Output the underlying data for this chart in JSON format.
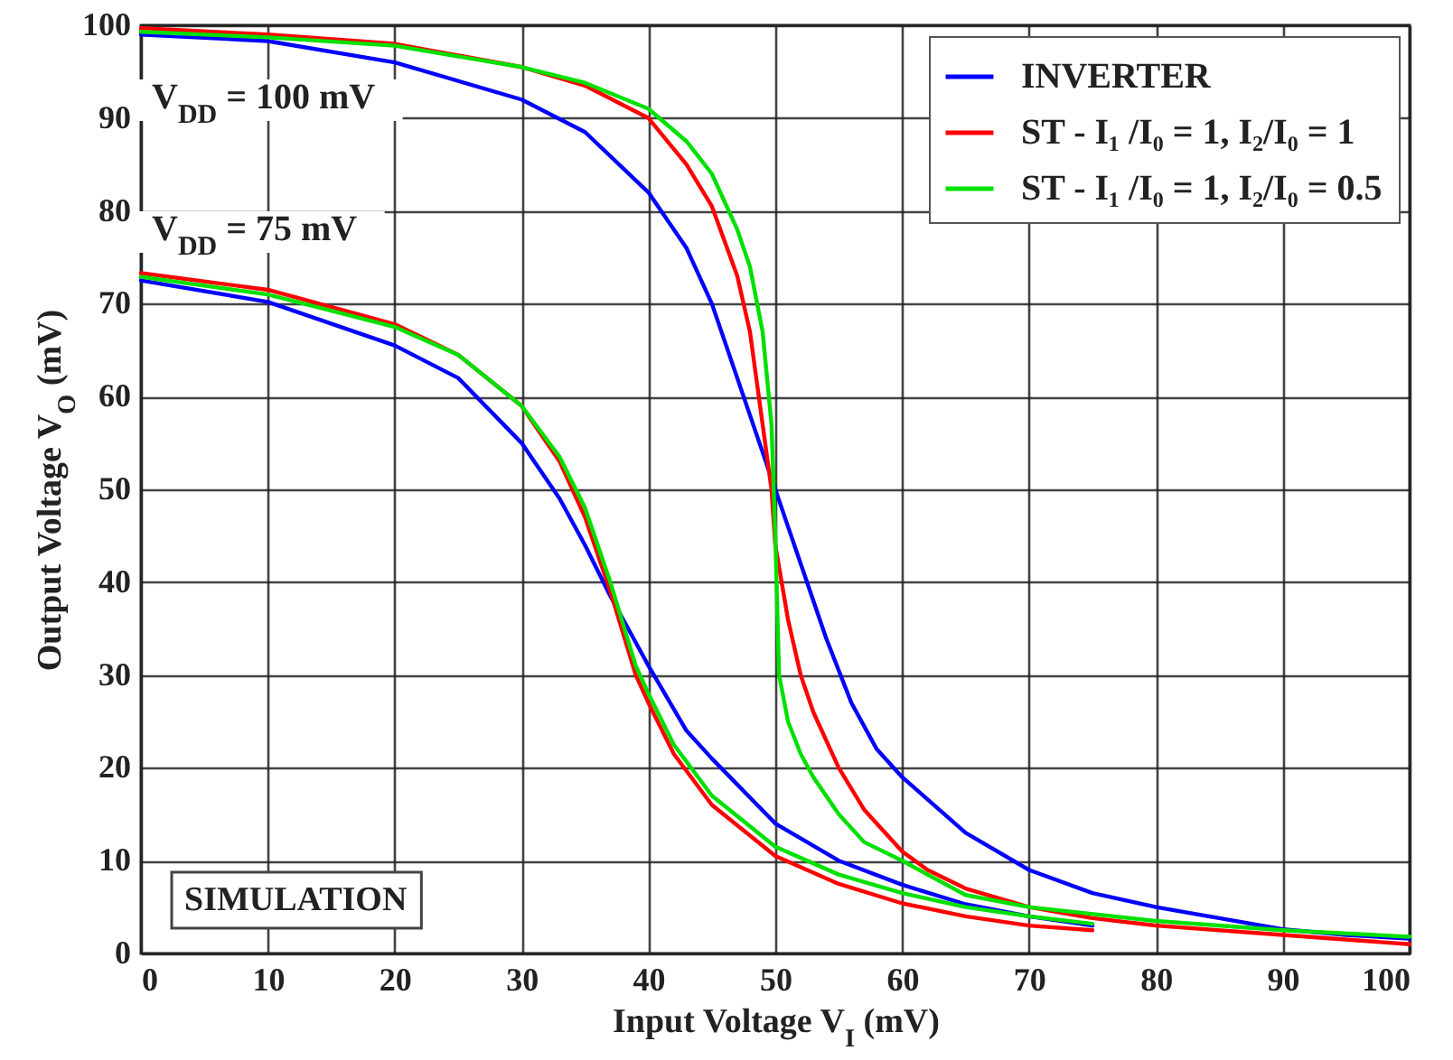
{
  "chart_data": {
    "type": "line",
    "xlabel": "Input Voltage V$_{I}$  (mV)",
    "ylabel": "Output Voltage  V$_{O}$ (mV)",
    "xlim": [
      0,
      100
    ],
    "ylim": [
      0,
      100
    ],
    "xticks": [
      0,
      10,
      20,
      30,
      40,
      50,
      60,
      70,
      80,
      90,
      100
    ],
    "yticks": [
      0,
      10,
      20,
      30,
      40,
      50,
      60,
      70,
      80,
      90,
      100
    ],
    "grid": true,
    "legend": "top right",
    "line_style": "solid",
    "marker": "none",
    "annotations": [
      "V$_{DD}$ = 100 mV",
      "V$_{DD}$ = 75 mV",
      "SIMULATION"
    ],
    "series": [
      {
        "name": "INVERTER",
        "color": "#0000ff",
        "x": [
          0,
          10,
          20,
          30,
          35,
          40,
          43,
          45,
          47,
          49,
          50,
          51,
          52,
          54,
          56,
          58,
          60,
          65,
          70,
          75,
          80,
          85,
          90,
          95,
          100
        ],
        "values": [
          99,
          98.3,
          96,
          92,
          88.5,
          82,
          76,
          70,
          62,
          54,
          50,
          46,
          42,
          34,
          27,
          22,
          19,
          13,
          9,
          6.5,
          5,
          3.8,
          2.6,
          2,
          1.6
        ]
      },
      {
        "name": "ST - I₁ /I₀ = 1, I₂/I₀ = 1",
        "color": "#ff0000",
        "x": [
          0,
          10,
          20,
          30,
          35,
          40,
          43,
          45,
          47,
          48,
          49,
          49.7,
          50,
          51,
          52,
          53,
          55,
          57,
          60,
          62,
          65,
          70,
          75,
          80,
          90,
          100
        ],
        "values": [
          99.7,
          99,
          98,
          95.5,
          93.5,
          90,
          85,
          80.5,
          73,
          67,
          57,
          50,
          44,
          36,
          30,
          26,
          20,
          15.5,
          11,
          9,
          7,
          5,
          3.8,
          3,
          2,
          1
        ]
      },
      {
        "name": "ST - I₁ /I₀ = 1, I₂/I₀ = 0.5",
        "color": "#00e000",
        "x": [
          0,
          10,
          20,
          30,
          35,
          40,
          43,
          45,
          47,
          48,
          49,
          49.7,
          50,
          50.3,
          51,
          52,
          53,
          55,
          57,
          60,
          62,
          65,
          70,
          80,
          90,
          100
        ],
        "values": [
          99.3,
          98.7,
          97.8,
          95.5,
          93.8,
          91,
          87.5,
          84,
          78,
          74,
          67,
          57,
          45,
          30,
          25,
          21.5,
          19,
          15,
          12,
          10,
          8.5,
          6.3,
          5,
          3.5,
          2.5,
          1.8
        ]
      },
      {
        "color": "#0000ff",
        "x": [
          0,
          10,
          20,
          25,
          30,
          33,
          35,
          37,
          40,
          43,
          45,
          50,
          55,
          60,
          65,
          70,
          75
        ],
        "values": [
          72.5,
          70.2,
          65.5,
          62,
          55,
          49,
          44,
          38.5,
          31,
          24,
          21,
          14,
          10,
          7.4,
          5.3,
          4,
          3
        ]
      },
      {
        "color": "#ff0000",
        "x": [
          0,
          10,
          20,
          25,
          30,
          33,
          35,
          37,
          39,
          40,
          42,
          45,
          50,
          55,
          60,
          65,
          70,
          75
        ],
        "values": [
          73.3,
          71.5,
          67.8,
          64.5,
          59,
          53,
          47,
          39,
          30,
          27,
          21.5,
          16,
          10.5,
          7.5,
          5.4,
          4,
          3,
          2.5
        ]
      },
      {
        "color": "#00e000",
        "x": [
          0,
          10,
          20,
          25,
          30,
          33,
          35,
          37,
          39,
          40,
          42,
          45,
          50,
          55,
          60,
          65,
          70,
          75
        ],
        "values": [
          72.9,
          71,
          67.5,
          64.5,
          59,
          53.5,
          48,
          40,
          31,
          28,
          22.5,
          17,
          11.5,
          8.5,
          6.5,
          5,
          4,
          3.2
        ]
      }
    ]
  }
}
